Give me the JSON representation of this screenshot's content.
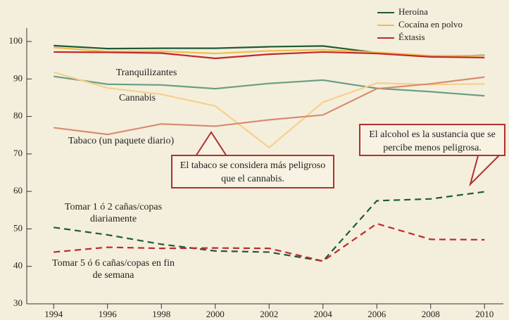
{
  "chart_data": {
    "type": "line",
    "x": [
      1994,
      1996,
      1998,
      2000,
      2002,
      2004,
      2006,
      2008,
      2010
    ],
    "xlim": [
      1993,
      2010.7
    ],
    "xticks": [
      1994,
      1996,
      1998,
      2000,
      2002,
      2004,
      2006,
      2008,
      2010
    ],
    "ylim": [
      30,
      100
    ],
    "yticks": [
      30,
      40,
      50,
      60,
      70,
      80,
      90,
      100
    ],
    "series": [
      {
        "name": "Heroína",
        "color": "#1f5a3a",
        "legend": true,
        "values": [
          98.9,
          98.1,
          98.2,
          98.2,
          98.6,
          98.8,
          97.0,
          96.0,
          96.3
        ]
      },
      {
        "name": "Cocaína en polvo",
        "color": "#f0bd48",
        "legend": true,
        "values": [
          98.4,
          97.3,
          97.4,
          96.8,
          97.5,
          97.8,
          97.1,
          96.2,
          96.2
        ]
      },
      {
        "name": "Éxtasis",
        "color": "#c0282d",
        "legend": true,
        "values": [
          97.2,
          97.1,
          96.9,
          95.5,
          96.6,
          97.2,
          96.8,
          95.9,
          95.7
        ]
      },
      {
        "name": "Tranquilizantes",
        "color": "#6a9e86",
        "legend": false,
        "values": [
          90.7,
          88.6,
          88.4,
          87.4,
          88.8,
          89.7,
          87.5,
          86.6,
          85.5
        ]
      },
      {
        "name": "Cannabis",
        "color": "#f6d08a",
        "legend": false,
        "values": [
          91.8,
          87.6,
          85.9,
          82.8,
          71.7,
          83.8,
          88.9,
          88.5,
          88.7
        ]
      },
      {
        "name": "Tabaco (un paquete diario)",
        "color": "#d98b70",
        "legend": false,
        "values": [
          77.0,
          75.2,
          78.0,
          77.4,
          79.1,
          80.4,
          87.4,
          88.7,
          90.5
        ]
      },
      {
        "name": "Tomar 1 ó 2 cañas/copas diariamente",
        "color": "#1f5a3a",
        "legend": false,
        "dashed": true,
        "values": [
          50.4,
          48.4,
          45.9,
          44.1,
          43.8,
          41.4,
          57.5,
          58.0,
          59.9
        ]
      },
      {
        "name": "Tomar 5 ó 6 cañas/copas en fin de semana",
        "color": "#c0282d",
        "legend": false,
        "dashed": true,
        "values": [
          43.8,
          45.1,
          44.8,
          44.9,
          44.8,
          41.4,
          51.4,
          47.2,
          47.1
        ]
      }
    ],
    "annotations": [
      "El tabaco se considera más peligroso que el cannabis.",
      "El alcohol es la sustancia que se percibe menos peligrosa."
    ]
  }
}
